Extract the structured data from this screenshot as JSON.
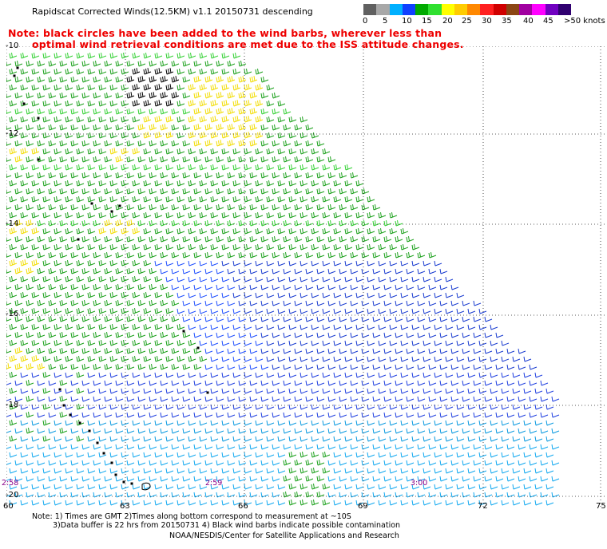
{
  "title": "Rapidscat Corrected Winds(12.5KM) v1.1 20150731 descending",
  "note": {
    "line1": "Note: black circles have been added to the wind barbs, wherever less than",
    "line2": "optimal wind retrieval conditions are met due to the ISS attitude changes."
  },
  "colorbar": {
    "colors": [
      "#606060",
      "#a8a8a8",
      "#00b0ff",
      "#1040ff",
      "#00aa00",
      "#30e030",
      "#ffff00",
      "#ffcc00",
      "#ff8800",
      "#ff2020",
      "#d00000",
      "#8b4513",
      "#a000a0",
      "#ff00ff",
      "#7000c0",
      "#300070"
    ],
    "labels": [
      "0",
      "5",
      "10",
      "15",
      "20",
      "25",
      "30",
      "35",
      "40",
      "45",
      ">50 knots"
    ]
  },
  "axes": {
    "lat_labels": [
      "-10",
      "-12",
      "-14",
      "-16",
      "-18",
      "-20"
    ],
    "lon_labels": [
      "60",
      "63",
      "66",
      "69",
      "72",
      "75"
    ]
  },
  "time_labels": [
    "2:58",
    "2:59",
    "3:00"
  ],
  "footer": {
    "line1": "Note: 1) Times are GMT 2)Times along bottom correspond to measurement at ~10S",
    "line2": "3)Data buffer is 22 hrs from 20150731 4) Black wind barbs indicate possible contamination",
    "line3": "NOAA/NESDIS/Center for Satellite Applications and Research"
  }
}
